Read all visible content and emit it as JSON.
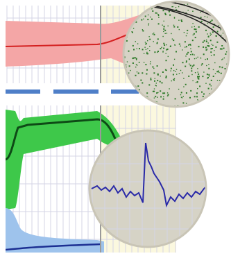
{
  "colors": {
    "background": "#ffffff",
    "grid_line": "#d4d4e6",
    "red_band": "#f4a6a6",
    "red_line": "#d42020",
    "green_band": "#3ec84a",
    "green_line": "#0e4a16",
    "blue_band": "#9ec3ec",
    "blue_line": "#1c2f92",
    "divider_bar": "#4f7fc8",
    "yellow_region": "#fbf8df",
    "marker_line": "#9a9a9a",
    "magnifier_fill": "#d6d3c6",
    "magnifier_rim": "#c9c5b6",
    "scatter_dot": "#2f7a2a",
    "contour_line": "#1f1f1f",
    "trace_line": "#2a2aa8"
  },
  "decor": {
    "icon": "magnifier-lens-icon",
    "description_free": true
  }
}
